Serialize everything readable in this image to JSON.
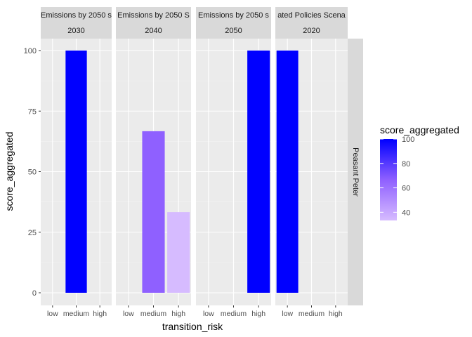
{
  "chart_data": {
    "type": "bar",
    "xlabel": "transition_risk",
    "ylabel": "score_aggregated",
    "ylim": [
      0,
      100
    ],
    "yticks": [
      0,
      25,
      50,
      75,
      100
    ],
    "categories": [
      "low",
      "medium",
      "high"
    ],
    "row_strip": "Peasant Peter",
    "grid": true,
    "legend": {
      "title": "score_aggregated",
      "position": "right",
      "ticks": [
        40,
        60,
        80,
        100
      ],
      "range": [
        33.3,
        100
      ],
      "color_low": "#d6bbff",
      "color_high": "#0000ff"
    },
    "panels": [
      {
        "strip_top": "Emissions by 2050 s",
        "strip_bottom": "2030",
        "values": [
          null,
          100,
          null
        ]
      },
      {
        "strip_top": "Emissions by 2050 S",
        "strip_bottom": "2040",
        "values": [
          null,
          66.7,
          33.3
        ]
      },
      {
        "strip_top": "Emissions by 2050 s",
        "strip_bottom": "2050",
        "values": [
          null,
          null,
          100
        ]
      },
      {
        "strip_top": "ated Policies Scena",
        "strip_bottom": "2020",
        "values": [
          100,
          null,
          null
        ]
      }
    ]
  }
}
